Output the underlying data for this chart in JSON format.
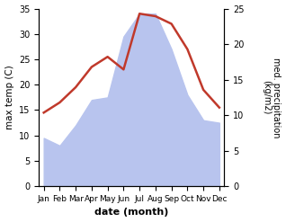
{
  "months": [
    "Jan",
    "Feb",
    "Mar",
    "Apr",
    "May",
    "Jun",
    "Jul",
    "Aug",
    "Sep",
    "Oct",
    "Nov",
    "Dec"
  ],
  "temperature": [
    14.5,
    16.5,
    19.5,
    23.5,
    25.5,
    23.0,
    34.0,
    33.5,
    32.0,
    27.0,
    19.0,
    15.5
  ],
  "precipitation": [
    9.5,
    8.0,
    12.0,
    17.0,
    17.5,
    29.5,
    34.0,
    34.0,
    27.0,
    18.0,
    13.0,
    12.5
  ],
  "temp_color": "#c0392b",
  "precip_fill_color": "#b8c4ee",
  "precip_edge_color": "#9aabdd",
  "temp_ylim": [
    0,
    35
  ],
  "precip_ylim": [
    0,
    35
  ],
  "right_ylim": [
    0,
    25
  ],
  "temp_yticks": [
    0,
    5,
    10,
    15,
    20,
    25,
    30,
    35
  ],
  "right_yticks": [
    0,
    5,
    10,
    15,
    20,
    25
  ],
  "xlabel": "date (month)",
  "ylabel_left": "max temp (C)",
  "ylabel_right": "med. precipitation\n(kg/m2)",
  "background_color": "#ffffff"
}
